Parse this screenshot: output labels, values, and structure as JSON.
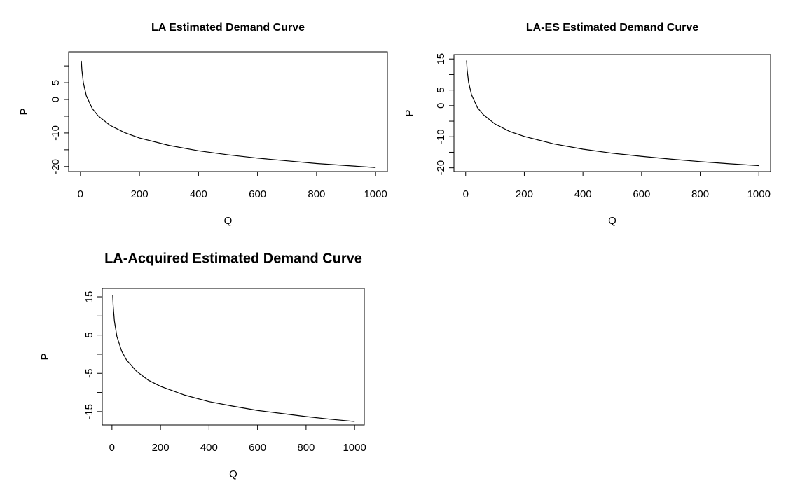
{
  "chart_data": [
    {
      "type": "line",
      "title": "LA Estimated Demand Curve",
      "x_label": "Q",
      "y_label": "P",
      "x": [
        3,
        5,
        10,
        20,
        40,
        60,
        100,
        150,
        200,
        300,
        400,
        500,
        600,
        700,
        800,
        900,
        1000
      ],
      "series": [
        {
          "color": "#000000",
          "values": [
            11.5,
            8.7,
            4.9,
            1.1,
            -2.7,
            -4.9,
            -7.7,
            -9.9,
            -11.5,
            -13.7,
            -15.3,
            -16.5,
            -17.5,
            -18.3,
            -19.1,
            -19.7,
            -20.3
          ]
        }
      ],
      "xlim": [
        -40,
        1040
      ],
      "xticks": [
        0,
        200,
        400,
        600,
        800,
        1000
      ],
      "ylim": [
        -21.5,
        14.2
      ],
      "yticks": [
        {
          "value": -20,
          "label": "-20"
        },
        {
          "value": -15,
          "label": null
        },
        {
          "value": -10,
          "label": "-10"
        },
        {
          "value": -5,
          "label": null
        },
        0,
        5,
        {
          "value": 10,
          "label": null
        }
      ]
    },
    {
      "type": "line",
      "title": "LA-ES Estimated Demand Curve",
      "x_label": "Q",
      "y_label": "P",
      "x": [
        3,
        5,
        10,
        20,
        40,
        60,
        100,
        150,
        200,
        300,
        400,
        500,
        600,
        700,
        800,
        900,
        1000
      ],
      "series": [
        {
          "color": "#000000",
          "values": [
            14.5,
            11.5,
            7.5,
            3.5,
            -0.6,
            -2.9,
            -5.9,
            -8.3,
            -9.9,
            -12.3,
            -14.0,
            -15.3,
            -16.3,
            -17.2,
            -18.0,
            -18.7,
            -19.3
          ]
        }
      ],
      "xlim": [
        -40,
        1040
      ],
      "xticks": [
        0,
        200,
        400,
        600,
        800,
        1000
      ],
      "ylim": [
        -21.2,
        16.4
      ],
      "yticks": [
        -20,
        {
          "value": -15,
          "label": null
        },
        -10,
        {
          "value": -5,
          "label": null
        },
        0,
        5,
        {
          "value": 10,
          "label": null
        },
        15
      ]
    },
    {
      "type": "line",
      "title": "LA-Acquired Estimated Demand Curve",
      "x_label": "Q",
      "y_label": "P",
      "x": [
        3,
        5,
        10,
        20,
        40,
        60,
        100,
        150,
        200,
        300,
        400,
        500,
        600,
        700,
        800,
        900,
        1000
      ],
      "series": [
        {
          "color": "#000000",
          "values": [
            15.5,
            12.6,
            8.7,
            4.7,
            0.8,
            -1.5,
            -4.4,
            -6.8,
            -8.4,
            -10.7,
            -12.4,
            -13.6,
            -14.7,
            -15.5,
            -16.3,
            -17.0,
            -17.6
          ]
        }
      ],
      "xlim": [
        -40,
        1040
      ],
      "xticks": [
        0,
        200,
        400,
        600,
        800,
        1000
      ],
      "ylim": [
        -18.5,
        17.2
      ],
      "yticks": [
        -15,
        {
          "value": -10,
          "label": null
        },
        -5,
        {
          "value": 0,
          "label": null
        },
        5,
        {
          "value": 10,
          "label": null
        },
        15
      ]
    }
  ]
}
